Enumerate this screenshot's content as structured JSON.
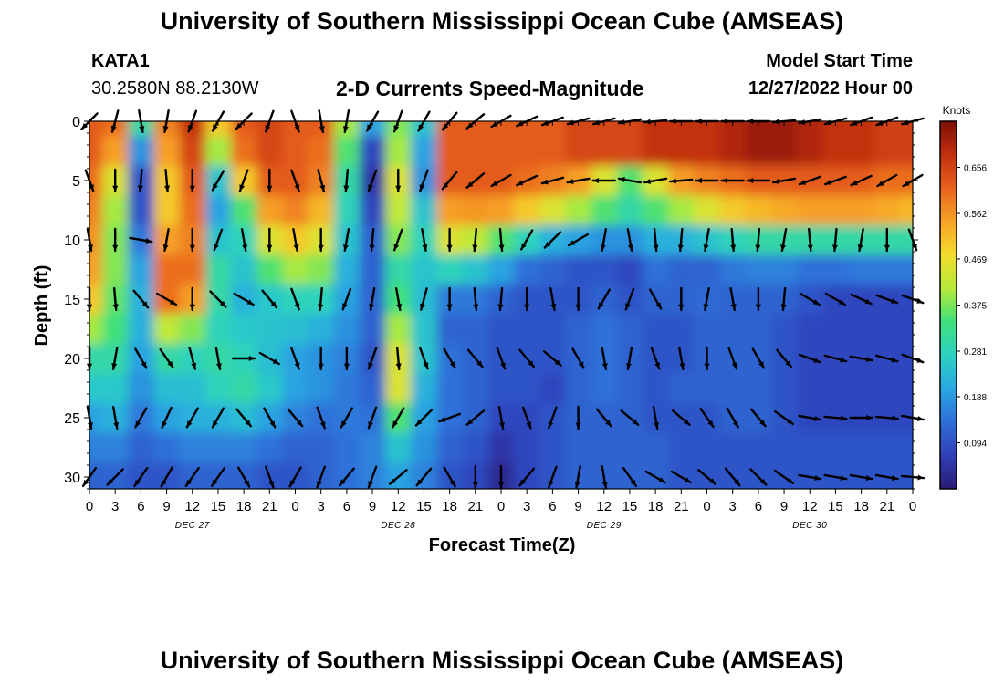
{
  "header": {
    "title": "University of Southern Mississippi Ocean Cube (AMSEAS)",
    "station": "KATA1",
    "coords": "30.2580N  88.2130W",
    "plot_title": "2-D Currents Speed-Magnitude",
    "model_start_label": "Model Start Time",
    "model_start_value": "12/27/2022 Hour 00"
  },
  "footer": {
    "title": "University of Southern Mississippi Ocean Cube (AMSEAS)"
  },
  "chart_data": {
    "type": "heatmap",
    "title": "2-D Currents Speed-Magnitude",
    "xlabel": "Forecast Time(Z)",
    "ylabel": "Depth (ft)",
    "x_ticks": [
      "0",
      "3",
      "6",
      "9",
      "12",
      "15",
      "18",
      "21",
      "0",
      "3",
      "6",
      "9",
      "12",
      "15",
      "18",
      "21",
      "0",
      "3",
      "6",
      "9",
      "12",
      "15",
      "18",
      "21",
      "0",
      "3",
      "6",
      "9",
      "12",
      "15",
      "18",
      "21",
      "0"
    ],
    "date_labels": [
      {
        "label": "DEC 27",
        "hour": 12
      },
      {
        "label": "DEC 28",
        "hour": 36
      },
      {
        "label": "DEC 29",
        "hour": 60
      },
      {
        "label": "DEC 30",
        "hour": 84
      }
    ],
    "xlim": [
      0,
      96
    ],
    "y_ticks": [
      0,
      5,
      10,
      15,
      20,
      25,
      30
    ],
    "ylim": [
      0,
      31
    ],
    "colorbar": {
      "title": "Knots",
      "ticks": [
        "0.656",
        "0.562",
        "0.469",
        "0.375",
        "0.281",
        "0.188",
        "0.094"
      ],
      "range": [
        0,
        0.75
      ],
      "colors": [
        "#2b1b74",
        "#2f3fb8",
        "#2f6ed8",
        "#29a7e2",
        "#2dd1c3",
        "#3fe07a",
        "#b6ea3a",
        "#f2dc2c",
        "#f7a326",
        "#e8611d",
        "#c2300f",
        "#7d0f06"
      ]
    },
    "depth_levels": [
      0,
      2.5,
      5,
      7.5,
      10,
      12.5,
      15,
      17.5,
      20,
      22.5,
      25,
      27.5,
      30
    ],
    "speed_hours": [
      0,
      3,
      6,
      9,
      12,
      15,
      18,
      21,
      24,
      27,
      30,
      33,
      36,
      39,
      42,
      45,
      48,
      51,
      54,
      57,
      60,
      63,
      66,
      69,
      72,
      75,
      78,
      81,
      84,
      87,
      90,
      93,
      96
    ],
    "speed_knots": [
      [
        0.62,
        0.6,
        0.3,
        0.58,
        0.68,
        0.5,
        0.62,
        0.65,
        0.62,
        0.62,
        0.4,
        0.2,
        0.38,
        0.25,
        0.62,
        0.62,
        0.62,
        0.62,
        0.62,
        0.65,
        0.65,
        0.65,
        0.68,
        0.68,
        0.68,
        0.7,
        0.72,
        0.72,
        0.7,
        0.68,
        0.68,
        0.66,
        0.66
      ],
      [
        0.62,
        0.55,
        0.18,
        0.55,
        0.65,
        0.4,
        0.6,
        0.65,
        0.62,
        0.6,
        0.35,
        0.08,
        0.4,
        0.2,
        0.62,
        0.62,
        0.62,
        0.62,
        0.62,
        0.65,
        0.65,
        0.65,
        0.68,
        0.68,
        0.68,
        0.7,
        0.72,
        0.72,
        0.7,
        0.68,
        0.68,
        0.66,
        0.66
      ],
      [
        0.6,
        0.45,
        0.1,
        0.5,
        0.62,
        0.25,
        0.5,
        0.62,
        0.62,
        0.58,
        0.3,
        0.05,
        0.45,
        0.18,
        0.62,
        0.62,
        0.62,
        0.6,
        0.58,
        0.55,
        0.45,
        0.35,
        0.45,
        0.55,
        0.58,
        0.6,
        0.62,
        0.62,
        0.62,
        0.62,
        0.62,
        0.6,
        0.6
      ],
      [
        0.58,
        0.4,
        0.1,
        0.5,
        0.6,
        0.2,
        0.35,
        0.55,
        0.58,
        0.52,
        0.28,
        0.08,
        0.42,
        0.25,
        0.55,
        0.56,
        0.55,
        0.5,
        0.45,
        0.4,
        0.35,
        0.3,
        0.35,
        0.4,
        0.45,
        0.5,
        0.52,
        0.54,
        0.55,
        0.55,
        0.55,
        0.54,
        0.52
      ],
      [
        0.56,
        0.38,
        0.15,
        0.55,
        0.58,
        0.25,
        0.28,
        0.45,
        0.5,
        0.45,
        0.25,
        0.12,
        0.38,
        0.28,
        0.45,
        0.42,
        0.35,
        0.28,
        0.22,
        0.2,
        0.18,
        0.18,
        0.22,
        0.22,
        0.25,
        0.28,
        0.3,
        0.3,
        0.3,
        0.3,
        0.3,
        0.3,
        0.3
      ],
      [
        0.55,
        0.38,
        0.2,
        0.6,
        0.6,
        0.3,
        0.25,
        0.35,
        0.4,
        0.38,
        0.22,
        0.12,
        0.3,
        0.25,
        0.28,
        0.25,
        0.2,
        0.14,
        0.12,
        0.1,
        0.1,
        0.08,
        0.14,
        0.12,
        0.12,
        0.15,
        0.16,
        0.16,
        0.14,
        0.14,
        0.15,
        0.15,
        0.15
      ],
      [
        0.5,
        0.36,
        0.22,
        0.6,
        0.55,
        0.3,
        0.22,
        0.26,
        0.28,
        0.28,
        0.2,
        0.12,
        0.34,
        0.24,
        0.15,
        0.15,
        0.12,
        0.1,
        0.1,
        0.1,
        0.12,
        0.1,
        0.12,
        0.12,
        0.13,
        0.12,
        0.12,
        0.12,
        0.1,
        0.08,
        0.08,
        0.08,
        0.08
      ],
      [
        0.4,
        0.34,
        0.22,
        0.42,
        0.38,
        0.28,
        0.26,
        0.25,
        0.24,
        0.22,
        0.18,
        0.12,
        0.4,
        0.25,
        0.12,
        0.12,
        0.1,
        0.1,
        0.1,
        0.12,
        0.14,
        0.12,
        0.1,
        0.1,
        0.12,
        0.12,
        0.12,
        0.1,
        0.08,
        0.08,
        0.08,
        0.08,
        0.08
      ],
      [
        0.3,
        0.3,
        0.2,
        0.3,
        0.28,
        0.3,
        0.28,
        0.24,
        0.2,
        0.18,
        0.16,
        0.1,
        0.45,
        0.25,
        0.14,
        0.12,
        0.1,
        0.1,
        0.1,
        0.12,
        0.14,
        0.12,
        0.1,
        0.1,
        0.12,
        0.12,
        0.12,
        0.1,
        0.08,
        0.08,
        0.08,
        0.08,
        0.08
      ],
      [
        0.26,
        0.26,
        0.18,
        0.24,
        0.24,
        0.28,
        0.3,
        0.26,
        0.2,
        0.18,
        0.15,
        0.12,
        0.45,
        0.22,
        0.14,
        0.12,
        0.1,
        0.1,
        0.08,
        0.12,
        0.14,
        0.12,
        0.1,
        0.12,
        0.12,
        0.12,
        0.12,
        0.1,
        0.08,
        0.08,
        0.08,
        0.08,
        0.08
      ],
      [
        0.2,
        0.22,
        0.15,
        0.2,
        0.22,
        0.22,
        0.24,
        0.2,
        0.16,
        0.14,
        0.15,
        0.14,
        0.35,
        0.2,
        0.14,
        0.12,
        0.08,
        0.08,
        0.1,
        0.12,
        0.12,
        0.12,
        0.1,
        0.1,
        0.1,
        0.12,
        0.12,
        0.1,
        0.08,
        0.08,
        0.08,
        0.08,
        0.08
      ],
      [
        0.16,
        0.16,
        0.12,
        0.14,
        0.16,
        0.16,
        0.16,
        0.14,
        0.12,
        0.12,
        0.14,
        0.16,
        0.25,
        0.18,
        0.12,
        0.1,
        0.05,
        0.08,
        0.1,
        0.12,
        0.12,
        0.12,
        0.12,
        0.1,
        0.1,
        0.1,
        0.1,
        0.1,
        0.1,
        0.1,
        0.1,
        0.1,
        0.1
      ],
      [
        0.12,
        0.12,
        0.1,
        0.1,
        0.12,
        0.12,
        0.12,
        0.1,
        0.1,
        0.12,
        0.14,
        0.16,
        0.2,
        0.16,
        0.1,
        0.08,
        0.03,
        0.08,
        0.1,
        0.12,
        0.12,
        0.12,
        0.12,
        0.1,
        0.1,
        0.1,
        0.1,
        0.1,
        0.1,
        0.1,
        0.1,
        0.1,
        0.1
      ]
    ],
    "vector_hours": [
      0,
      3,
      6,
      9,
      12,
      15,
      18,
      21,
      24,
      27,
      30,
      33,
      36,
      39,
      42,
      45,
      48,
      51,
      54,
      57,
      60,
      63,
      66,
      69,
      72,
      75,
      78,
      81,
      84,
      87,
      90,
      93,
      96
    ],
    "vector_depths": [
      0,
      5,
      10,
      15,
      20,
      25,
      30
    ],
    "vector_directions_deg": [
      [
        225,
        195,
        170,
        190,
        200,
        210,
        225,
        200,
        160,
        170,
        190,
        210,
        200,
        210,
        220,
        230,
        240,
        245,
        250,
        255,
        255,
        260,
        265,
        270,
        270,
        270,
        270,
        265,
        260,
        255,
        250,
        250,
        255
      ],
      [
        160,
        180,
        185,
        175,
        180,
        210,
        200,
        180,
        160,
        165,
        185,
        200,
        180,
        200,
        220,
        230,
        240,
        245,
        255,
        260,
        270,
        280,
        260,
        265,
        270,
        270,
        270,
        260,
        250,
        250,
        245,
        240,
        240
      ],
      [
        170,
        180,
        100,
        190,
        180,
        200,
        170,
        180,
        170,
        180,
        190,
        185,
        200,
        170,
        180,
        185,
        175,
        210,
        225,
        240,
        190,
        170,
        175,
        185,
        190,
        175,
        185,
        190,
        175,
        185,
        190,
        180,
        160
      ],
      [
        180,
        175,
        140,
        120,
        180,
        135,
        120,
        140,
        160,
        185,
        200,
        190,
        170,
        195,
        180,
        175,
        185,
        180,
        170,
        180,
        210,
        200,
        150,
        180,
        190,
        170,
        180,
        185,
        120,
        120,
        115,
        110,
        110
      ],
      [
        180,
        190,
        150,
        145,
        165,
        170,
        90,
        120,
        160,
        180,
        180,
        200,
        175,
        160,
        150,
        140,
        160,
        140,
        130,
        150,
        170,
        190,
        160,
        170,
        180,
        160,
        150,
        140,
        110,
        105,
        100,
        105,
        110
      ],
      [
        170,
        170,
        210,
        205,
        210,
        210,
        140,
        150,
        140,
        160,
        210,
        200,
        210,
        225,
        250,
        230,
        170,
        160,
        200,
        180,
        140,
        130,
        170,
        130,
        145,
        150,
        140,
        125,
        100,
        95,
        90,
        95,
        100
      ],
      [
        215,
        225,
        215,
        210,
        215,
        215,
        150,
        160,
        210,
        200,
        220,
        200,
        230,
        220,
        150,
        180,
        180,
        220,
        200,
        190,
        170,
        145,
        120,
        120,
        130,
        140,
        135,
        125,
        100,
        100,
        100,
        100,
        95
      ]
    ]
  }
}
